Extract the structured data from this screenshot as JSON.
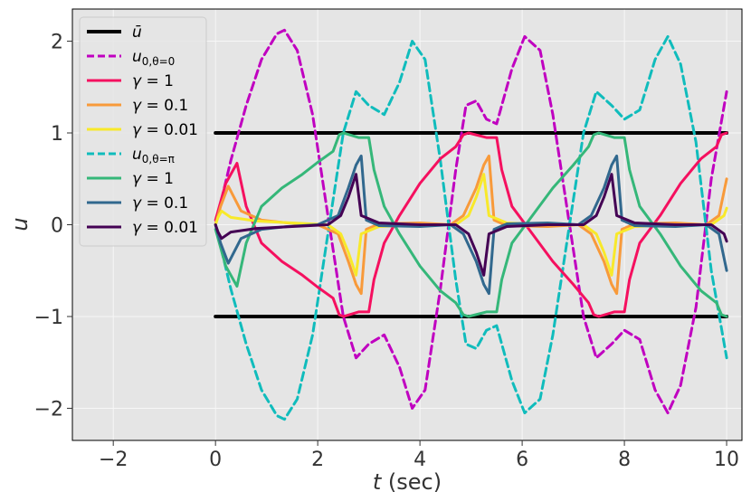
{
  "chart_data": {
    "type": "line",
    "title": "",
    "xlabel": "t (sec)",
    "ylabel": "u",
    "xlim": [
      -2.8,
      10.3
    ],
    "ylim": [
      -2.35,
      2.35
    ],
    "grid": true,
    "legend_position": "top-left",
    "xticks": [
      -2,
      0,
      2,
      4,
      6,
      8,
      10
    ],
    "yticks": [
      -2,
      -1,
      0,
      1,
      2
    ],
    "xtick_labels": [
      "−2",
      "0",
      "2",
      "4",
      "6",
      "8",
      "10"
    ],
    "ytick_labels": [
      "−2",
      "−1",
      "0",
      "1",
      "2"
    ],
    "legend": [
      {
        "label": "ū",
        "color": "#000000",
        "dash": false
      },
      {
        "label": "u0,θ=0",
        "color": "#c000c0",
        "dash": true
      },
      {
        "label": "γ = 1",
        "color": "#f5105f",
        "dash": false
      },
      {
        "label": "γ = 0.1",
        "color": "#f89a3a",
        "dash": false
      },
      {
        "label": "γ = 0.01",
        "color": "#f8e92a",
        "dash": false
      },
      {
        "label": "u0,θ=π",
        "color": "#10bcbc",
        "dash": true
      },
      {
        "label": "γ = 1",
        "color": "#35b779",
        "dash": false
      },
      {
        "label": "γ = 0.1",
        "color": "#31688e",
        "dash": false
      },
      {
        "label": "γ = 0.01",
        "color": "#440154",
        "dash": false
      }
    ],
    "series": [
      {
        "name": "ū (upper)",
        "color": "#000000",
        "width": 4,
        "dash": false,
        "x": [
          0,
          10
        ],
        "y": [
          1,
          1
        ]
      },
      {
        "name": "ū (lower)",
        "color": "#000000",
        "width": 4,
        "dash": false,
        "x": [
          0,
          10
        ],
        "y": [
          -1,
          -1
        ]
      },
      {
        "name": "u0,θ=0",
        "color": "#c000c0",
        "width": 3,
        "dash": true,
        "x": [
          0,
          0.3,
          0.6,
          0.9,
          1.2,
          1.35,
          1.6,
          1.9,
          2.2,
          2.5,
          2.75,
          3.0,
          3.3,
          3.6,
          3.85,
          4.1,
          4.4,
          4.7,
          4.9,
          5.1,
          5.3,
          5.5,
          5.8,
          6.05,
          6.35,
          6.6,
          6.9,
          7.2,
          7.45,
          7.75,
          8.0,
          8.3,
          8.6,
          8.85,
          9.1,
          9.4,
          9.7,
          10.0
        ],
        "y": [
          0,
          0.7,
          1.3,
          1.8,
          2.08,
          2.12,
          1.9,
          1.2,
          0.1,
          -1.0,
          -1.45,
          -1.3,
          -1.2,
          -1.55,
          -2.0,
          -1.8,
          -0.7,
          0.6,
          1.3,
          1.35,
          1.15,
          1.1,
          1.7,
          2.05,
          1.9,
          1.2,
          0.1,
          -1.0,
          -1.45,
          -1.3,
          -1.15,
          -1.25,
          -1.8,
          -2.05,
          -1.75,
          -0.9,
          0.5,
          1.45
        ]
      },
      {
        "name": "u0,θ=π",
        "color": "#10bcbc",
        "width": 3,
        "dash": true,
        "x": [
          0,
          0.3,
          0.6,
          0.9,
          1.2,
          1.35,
          1.6,
          1.9,
          2.2,
          2.5,
          2.75,
          3.0,
          3.3,
          3.6,
          3.85,
          4.1,
          4.4,
          4.7,
          4.9,
          5.1,
          5.3,
          5.5,
          5.8,
          6.05,
          6.35,
          6.6,
          6.9,
          7.2,
          7.45,
          7.75,
          8.0,
          8.3,
          8.6,
          8.85,
          9.1,
          9.4,
          9.7,
          10.0
        ],
        "y": [
          0,
          -0.7,
          -1.3,
          -1.8,
          -2.08,
          -2.12,
          -1.9,
          -1.2,
          -0.1,
          1.0,
          1.45,
          1.3,
          1.2,
          1.55,
          2.0,
          1.8,
          0.7,
          -0.6,
          -1.3,
          -1.35,
          -1.15,
          -1.1,
          -1.7,
          -2.05,
          -1.9,
          -1.2,
          -0.1,
          1.0,
          1.45,
          1.3,
          1.15,
          1.25,
          1.8,
          2.05,
          1.75,
          0.9,
          -0.5,
          -1.45
        ]
      },
      {
        "name": "γ = 1",
        "color": "#f5105f",
        "width": 3,
        "dash": false,
        "x": [
          0,
          0.2,
          0.42,
          0.6,
          0.9,
          1.3,
          1.7,
          2.0,
          2.3,
          2.42,
          2.5,
          2.8,
          3.0,
          3.1,
          3.3,
          3.6,
          4.0,
          4.4,
          4.7,
          4.85,
          4.95,
          5.3,
          5.5,
          5.6,
          5.8,
          6.2,
          6.6,
          7.0,
          7.3,
          7.4,
          7.5,
          7.8,
          8.0,
          8.1,
          8.3,
          8.7,
          9.1,
          9.5,
          9.8,
          9.9,
          10.0
        ],
        "y": [
          0.05,
          0.45,
          0.67,
          0.2,
          -0.2,
          -0.4,
          -0.55,
          -0.68,
          -0.8,
          -0.98,
          -1.0,
          -0.95,
          -0.95,
          -0.6,
          -0.2,
          0.1,
          0.45,
          0.72,
          0.85,
          0.98,
          1.0,
          0.95,
          0.95,
          0.6,
          0.2,
          -0.1,
          -0.4,
          -0.65,
          -0.85,
          -0.98,
          -1.0,
          -0.95,
          -0.95,
          -0.6,
          -0.2,
          0.1,
          0.45,
          0.72,
          0.85,
          0.98,
          1.0
        ]
      },
      {
        "name": "γ = 0.1",
        "color": "#f89a3a",
        "width": 3,
        "dash": false,
        "x": [
          0,
          0.1,
          0.25,
          0.5,
          0.9,
          1.4,
          2.0,
          2.4,
          2.6,
          2.75,
          2.85,
          2.95,
          3.2,
          4.0,
          4.6,
          4.85,
          5.1,
          5.25,
          5.35,
          5.45,
          5.7,
          6.5,
          7.1,
          7.35,
          7.6,
          7.75,
          7.85,
          7.95,
          8.2,
          9.0,
          9.6,
          9.85,
          10.0
        ],
        "y": [
          0,
          0.2,
          0.42,
          0.15,
          0.05,
          0.02,
          0.0,
          -0.1,
          -0.4,
          -0.65,
          -0.75,
          -0.05,
          0.01,
          0.02,
          0.0,
          0.1,
          0.4,
          0.65,
          0.75,
          0.05,
          -0.01,
          -0.02,
          0.0,
          -0.1,
          -0.4,
          -0.65,
          -0.75,
          -0.05,
          0.01,
          0.02,
          0.0,
          0.1,
          0.5
        ]
      },
      {
        "name": "γ = 0.01",
        "color": "#f8e92a",
        "width": 3,
        "dash": false,
        "x": [
          0,
          0.05,
          0.12,
          0.3,
          0.8,
          1.5,
          2.2,
          2.45,
          2.6,
          2.75,
          2.85,
          3.2,
          4.0,
          4.7,
          4.95,
          5.1,
          5.25,
          5.35,
          5.7,
          6.5,
          7.2,
          7.45,
          7.6,
          7.75,
          7.85,
          8.2,
          9.0,
          9.7,
          9.95,
          10.0
        ],
        "y": [
          0,
          0.08,
          0.15,
          0.08,
          0.04,
          0.02,
          0.0,
          -0.1,
          -0.3,
          -0.55,
          -0.1,
          -0.02,
          0.0,
          0.0,
          0.1,
          0.3,
          0.55,
          0.1,
          0.02,
          0.0,
          0.0,
          -0.1,
          -0.3,
          -0.55,
          -0.1,
          -0.02,
          0.0,
          0.0,
          0.1,
          0.18
        ]
      },
      {
        "name": "γ = 1",
        "color": "#35b779",
        "width": 3,
        "dash": false,
        "x": [
          0,
          0.2,
          0.42,
          0.6,
          0.9,
          1.3,
          1.7,
          2.0,
          2.3,
          2.42,
          2.5,
          2.8,
          3.0,
          3.1,
          3.3,
          3.6,
          4.0,
          4.4,
          4.7,
          4.85,
          4.95,
          5.3,
          5.5,
          5.6,
          5.8,
          6.2,
          6.6,
          7.0,
          7.3,
          7.4,
          7.5,
          7.8,
          8.0,
          8.1,
          8.3,
          8.7,
          9.1,
          9.5,
          9.8,
          9.9,
          10.0
        ],
        "y": [
          -0.05,
          -0.45,
          -0.67,
          -0.2,
          0.2,
          0.4,
          0.55,
          0.68,
          0.8,
          0.98,
          1.0,
          0.95,
          0.95,
          0.6,
          0.2,
          -0.1,
          -0.45,
          -0.72,
          -0.85,
          -0.98,
          -1.0,
          -0.95,
          -0.95,
          -0.6,
          -0.2,
          0.1,
          0.4,
          0.65,
          0.85,
          0.98,
          1.0,
          0.95,
          0.95,
          0.6,
          0.2,
          -0.1,
          -0.45,
          -0.72,
          -0.85,
          -0.98,
          -1.0
        ]
      },
      {
        "name": "γ = 0.1",
        "color": "#31688e",
        "width": 3,
        "dash": false,
        "x": [
          0,
          0.1,
          0.25,
          0.5,
          0.9,
          1.4,
          2.0,
          2.4,
          2.6,
          2.75,
          2.85,
          2.95,
          3.2,
          4.0,
          4.6,
          4.85,
          5.1,
          5.25,
          5.35,
          5.45,
          5.7,
          6.5,
          7.1,
          7.35,
          7.6,
          7.75,
          7.85,
          7.95,
          8.2,
          9.0,
          9.6,
          9.85,
          10.0
        ],
        "y": [
          0,
          -0.2,
          -0.42,
          -0.15,
          -0.05,
          -0.02,
          0.0,
          0.1,
          0.4,
          0.65,
          0.75,
          0.05,
          -0.01,
          -0.02,
          0.0,
          -0.1,
          -0.4,
          -0.65,
          -0.75,
          -0.05,
          0.01,
          0.02,
          0.0,
          0.1,
          0.4,
          0.65,
          0.75,
          0.05,
          -0.01,
          -0.02,
          0.0,
          -0.1,
          -0.5
        ]
      },
      {
        "name": "γ = 0.01",
        "color": "#440154",
        "width": 3,
        "dash": false,
        "x": [
          0,
          0.05,
          0.12,
          0.3,
          0.8,
          1.5,
          2.2,
          2.45,
          2.6,
          2.75,
          2.85,
          3.2,
          4.0,
          4.7,
          4.95,
          5.1,
          5.25,
          5.35,
          5.7,
          6.5,
          7.2,
          7.45,
          7.6,
          7.75,
          7.85,
          8.2,
          9.0,
          9.7,
          9.95,
          10.0
        ],
        "y": [
          0,
          -0.08,
          -0.15,
          -0.08,
          -0.04,
          -0.02,
          0.0,
          0.1,
          0.3,
          0.55,
          0.1,
          0.02,
          0.0,
          0.0,
          -0.1,
          -0.3,
          -0.55,
          -0.1,
          -0.02,
          0.0,
          0.0,
          0.1,
          0.3,
          0.55,
          0.1,
          0.02,
          0.0,
          0.0,
          -0.1,
          -0.18
        ]
      }
    ]
  }
}
